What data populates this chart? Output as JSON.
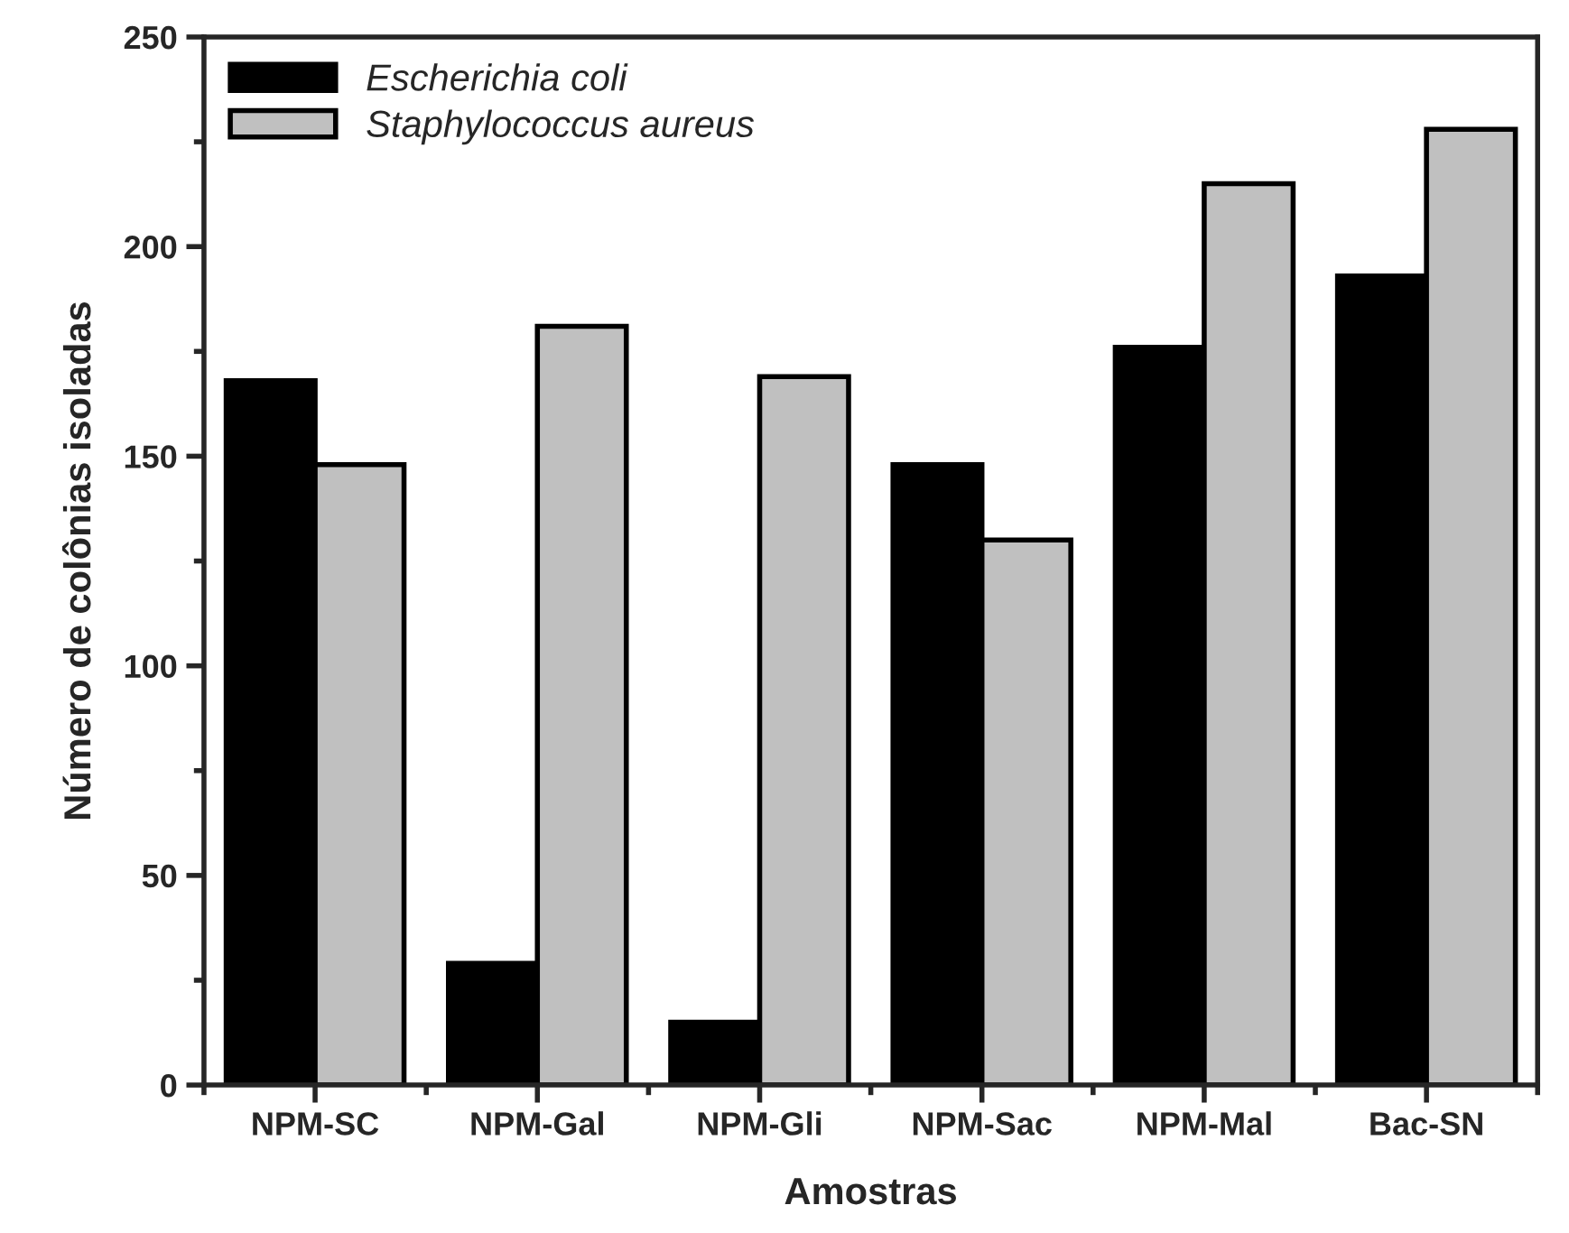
{
  "chart_data": {
    "type": "bar",
    "xlabel": "Amostras",
    "ylabel": "Número de colônias isoladas",
    "categories": [
      "NPM-SC",
      "NPM-Gal",
      "NPM-Gli",
      "NPM-Sac",
      "NPM-Mal",
      "Bac-SN"
    ],
    "series": [
      {
        "name": "Escherichia coli",
        "color": "#000000",
        "values": [
          168,
          29,
          15,
          148,
          176,
          193
        ]
      },
      {
        "name": "Staphylococcus aureus",
        "color": "#c0c0c0",
        "values": [
          148,
          181,
          169,
          130,
          215,
          228
        ]
      }
    ],
    "ylim": [
      0,
      250
    ],
    "yticks": [
      0,
      50,
      100,
      150,
      200,
      250
    ],
    "grid": false,
    "legend": "top left"
  }
}
